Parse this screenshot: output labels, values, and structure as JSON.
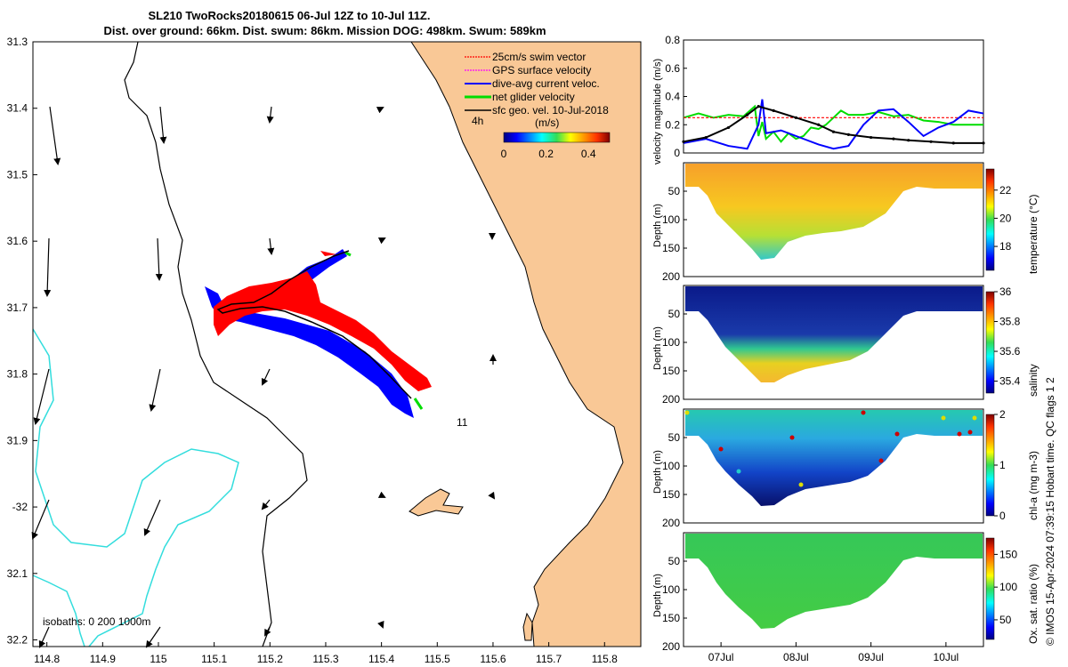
{
  "title_line1": "SL210 TwoRocks20180615 06-Jul 12Z to 10-Jul 11Z.",
  "title_line2": "Dist. over ground: 66km. Dist. swum: 86km. Mission DOG: 498km. Swum: 589km",
  "credit": "© IMOS 15-Apr-2024 07:39:15 Hobart time. QC flags 1  2",
  "colors": {
    "land": "#f9c896",
    "swim": "#ff0000",
    "gps": "#ff00ff",
    "diveavg": "#0000ff",
    "net": "#00dd00",
    "geo": "#000000",
    "isobath200": "#33dddd",
    "coast": "#000000"
  },
  "chart_data": [
    {
      "type": "map",
      "xlabel_ticks": [
        "114.8",
        "114.9",
        "115",
        "115.1",
        "115.2",
        "115.3",
        "115.4",
        "115.5",
        "115.6",
        "115.7",
        "115.8"
      ],
      "x_values": [
        114.8,
        114.9,
        115.0,
        115.1,
        115.2,
        115.3,
        115.4,
        115.5,
        115.6,
        115.7,
        115.8
      ],
      "ylabel_ticks": [
        "31.3",
        "31.4",
        "31.5",
        "31.6",
        "31.7",
        "31.8",
        "31.9",
        "-32",
        "32.1",
        "32.2"
      ],
      "y_values": [
        31.3,
        31.4,
        31.5,
        31.6,
        31.7,
        31.8,
        31.9,
        32.0,
        32.1,
        32.2
      ],
      "xlim": [
        114.775,
        115.865
      ],
      "ylim": [
        31.3,
        32.21
      ],
      "legend": [
        {
          "label": "25cm/s swim vector",
          "color": "#ff0000"
        },
        {
          "label": "GPS surface velocity",
          "color": "#ff00ff"
        },
        {
          "label": "dive-avg current veloc.",
          "color": "#0000ff"
        },
        {
          "label": "net glider velocity",
          "color": "#00dd00"
        },
        {
          "label": "sfc geo. vel. 10-Jul-2018",
          "color": "#000000"
        }
      ],
      "colorbar": {
        "label": "(m/s)",
        "ticks": [
          "0",
          "0.2",
          "0.4"
        ],
        "range": [
          0,
          0.5
        ]
      },
      "annotations": [
        {
          "text": "4h"
        },
        {
          "text": "11"
        }
      ],
      "isobaths_label": "isobaths: 0   200  1000m",
      "track": [
        [
          115.45,
          31.87
        ],
        [
          115.33,
          31.72
        ],
        [
          115.22,
          31.705
        ],
        [
          115.15,
          31.71
        ],
        [
          115.11,
          31.72
        ],
        [
          115.17,
          31.705
        ],
        [
          115.27,
          31.69
        ],
        [
          115.34,
          31.62
        ]
      ]
    },
    {
      "type": "line",
      "ylabel": "velocity magnitude (m/s)",
      "ylim": [
        0,
        0.8
      ],
      "yticks": [
        "0",
        "0.2",
        "0.4",
        "0.6",
        "0.8"
      ],
      "ytick_values": [
        0,
        0.2,
        0.4,
        0.6,
        0.8
      ],
      "xlim": [
        0,
        4
      ],
      "series": [
        {
          "name": "net glider velocity",
          "color": "#00dd00",
          "x": [
            0,
            0.2,
            0.4,
            0.6,
            0.8,
            0.95,
            1.0,
            1.05,
            1.1,
            1.2,
            1.3,
            1.4,
            1.5,
            1.6,
            1.7,
            1.8,
            1.9,
            2.0,
            2.1,
            2.2,
            2.4,
            2.6,
            2.8,
            3.0,
            3.2,
            3.4,
            3.6,
            3.8,
            4.0
          ],
          "y": [
            0.25,
            0.28,
            0.25,
            0.27,
            0.26,
            0.33,
            0.12,
            0.22,
            0.1,
            0.15,
            0.08,
            0.14,
            0.1,
            0.12,
            0.18,
            0.17,
            0.2,
            0.25,
            0.3,
            0.27,
            0.27,
            0.29,
            0.26,
            0.27,
            0.23,
            0.22,
            0.2,
            0.2,
            0.2
          ]
        },
        {
          "name": "25cm/s swim",
          "color": "#ff0000",
          "x": [
            0,
            4
          ],
          "y": [
            0.25,
            0.25
          ]
        },
        {
          "name": "dive-avg current veloc.",
          "color": "#0000ff",
          "x": [
            0,
            0.3,
            0.6,
            0.85,
            1.0,
            1.05,
            1.1,
            1.3,
            1.6,
            1.8,
            2.0,
            2.2,
            2.4,
            2.6,
            2.8,
            3.0,
            3.2,
            3.4,
            3.6,
            3.8,
            4.0
          ],
          "y": [
            0.07,
            0.1,
            0.05,
            0.03,
            0.2,
            0.38,
            0.14,
            0.16,
            0.1,
            0.06,
            0.03,
            0.05,
            0.2,
            0.3,
            0.31,
            0.22,
            0.12,
            0.18,
            0.22,
            0.3,
            0.28
          ]
        },
        {
          "name": "sfc geo. vel.",
          "color": "#000000",
          "x": [
            0,
            0.3,
            0.6,
            0.85,
            1.0,
            1.2,
            1.5,
            1.8,
            2.0,
            2.2,
            2.5,
            2.8,
            3.0,
            3.3,
            3.6,
            4.0
          ],
          "y": [
            0.08,
            0.11,
            0.18,
            0.27,
            0.33,
            0.3,
            0.25,
            0.2,
            0.15,
            0.13,
            0.11,
            0.1,
            0.09,
            0.08,
            0.07,
            0.07
          ]
        }
      ]
    },
    {
      "type": "heatmap",
      "variable": "temperature",
      "colorbar_label": "temperature (°C)",
      "ylabel": "Depth (m)",
      "yticks": [
        "50",
        "100",
        "150",
        "200"
      ],
      "ytick_values": [
        50,
        100,
        150,
        200
      ],
      "cbar_ticks": [
        "18",
        "20",
        "22"
      ],
      "cbar_values": [
        18,
        20,
        22
      ],
      "range": [
        16.3,
        23.5
      ]
    },
    {
      "type": "heatmap",
      "variable": "salinity",
      "colorbar_label": "salinity",
      "ylabel": "Depth (m)",
      "yticks": [
        "50",
        "100",
        "150",
        "200"
      ],
      "ytick_values": [
        50,
        100,
        150,
        200
      ],
      "cbar_ticks": [
        "35.4",
        "35.6",
        "35.8",
        "36"
      ],
      "cbar_values": [
        35.4,
        35.6,
        35.8,
        36.0
      ],
      "range": [
        35.32,
        36.0
      ]
    },
    {
      "type": "heatmap",
      "variable": "chl-a",
      "colorbar_label": "chl-a (mg m-3)",
      "ylabel": "Depth (m)",
      "yticks": [
        "50",
        "100",
        "150",
        "200"
      ],
      "ytick_values": [
        50,
        100,
        150,
        200
      ],
      "cbar_ticks": [
        "0",
        "1",
        "2"
      ],
      "cbar_values": [
        0,
        1,
        2
      ],
      "range": [
        0,
        2
      ]
    },
    {
      "type": "heatmap",
      "variable": "oxygen",
      "colorbar_label": "Ox. sat. ratio (%)",
      "ylabel": "Depth (m)",
      "yticks": [
        "50",
        "100",
        "150",
        "200"
      ],
      "ytick_values": [
        50,
        100,
        150,
        200
      ],
      "cbar_ticks": [
        "50",
        "100",
        "150"
      ],
      "cbar_values": [
        50,
        100,
        150
      ],
      "range": [
        20,
        175
      ],
      "xlabel_ticks": [
        "07Jul",
        "08Jul",
        "09Jul",
        "10Jul"
      ],
      "x_values": [
        0.5,
        1.5,
        2.5,
        3.5
      ]
    }
  ]
}
